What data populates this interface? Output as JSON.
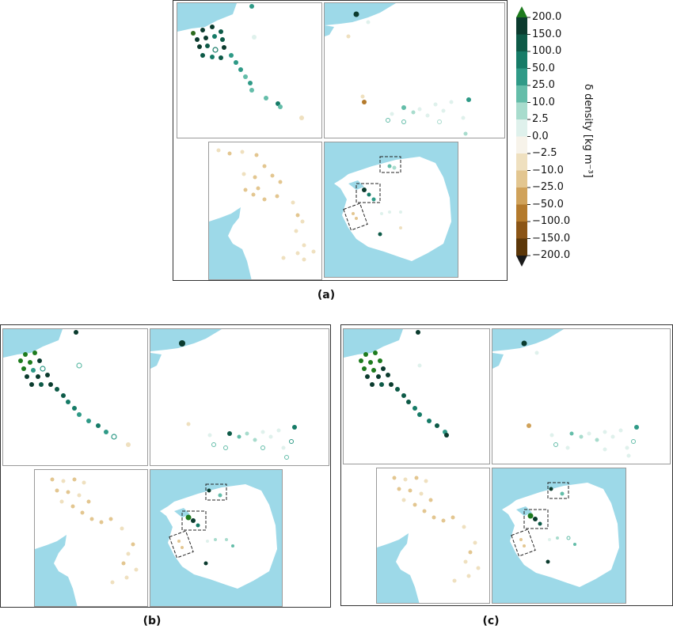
{
  "colorbar": {
    "title": "δ density [kg m⁻³]",
    "ticks": [
      "200.0",
      "150.0",
      "100.0",
      "50.0",
      "25.0",
      "10.0",
      "2.5",
      "0.0",
      "−2.5",
      "−10.0",
      "−25.0",
      "−50.0",
      "−100.0",
      "−150.0",
      "−200.0"
    ],
    "colors": [
      "#0b3b2e",
      "#0d5a47",
      "#167b67",
      "#2f9a87",
      "#64bda9",
      "#a8dccd",
      "#dff1ec",
      "#f7f3ea",
      "#efe0bf",
      "#e3c690",
      "#d0a25a",
      "#b47a2c",
      "#8b5516",
      "#5c3709"
    ],
    "extend_top_color": "#1e7b1e",
    "extend_bottom_color": "#1a1a1a"
  },
  "panels": {
    "a": {
      "caption": "(a)"
    },
    "b": {
      "caption": "(b)"
    },
    "c": {
      "caption": "(c)"
    }
  },
  "colors": {
    "ocean": "#9dd9e8",
    "land": "#ffffff",
    "frame": "#333333"
  }
}
